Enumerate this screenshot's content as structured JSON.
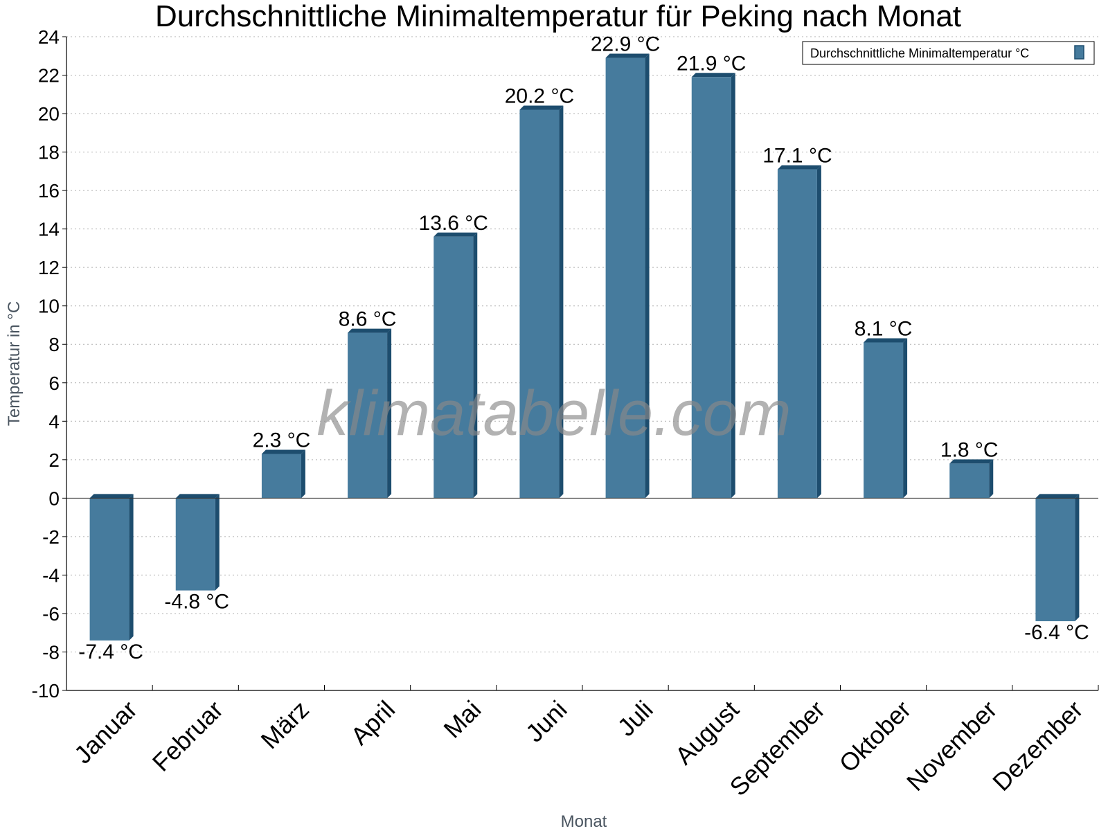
{
  "chart_data": {
    "type": "bar",
    "title": "Durchschnittliche Minimaltemperatur für Peking nach Monat",
    "xlabel": "Monat",
    "ylabel": "Temperatur in °C",
    "ylim": [
      -10,
      24
    ],
    "ytick_step": 2,
    "grid": "horizontal dotted",
    "legend_position": "top-right",
    "watermark": "klimatabelle.com",
    "unit_suffix": " °C",
    "categories": [
      "Januar",
      "Februar",
      "März",
      "April",
      "Mai",
      "Juni",
      "Juli",
      "August",
      "September",
      "Oktober",
      "November",
      "Dezember"
    ],
    "series": [
      {
        "name": "Durchschnittliche Minimaltemperatur °C",
        "values": [
          -7.4,
          -4.8,
          2.3,
          8.6,
          13.6,
          20.2,
          22.9,
          21.9,
          17.1,
          8.1,
          1.8,
          -6.4
        ],
        "color": "#467b9d",
        "side_color": "#1d4d6e"
      }
    ]
  }
}
